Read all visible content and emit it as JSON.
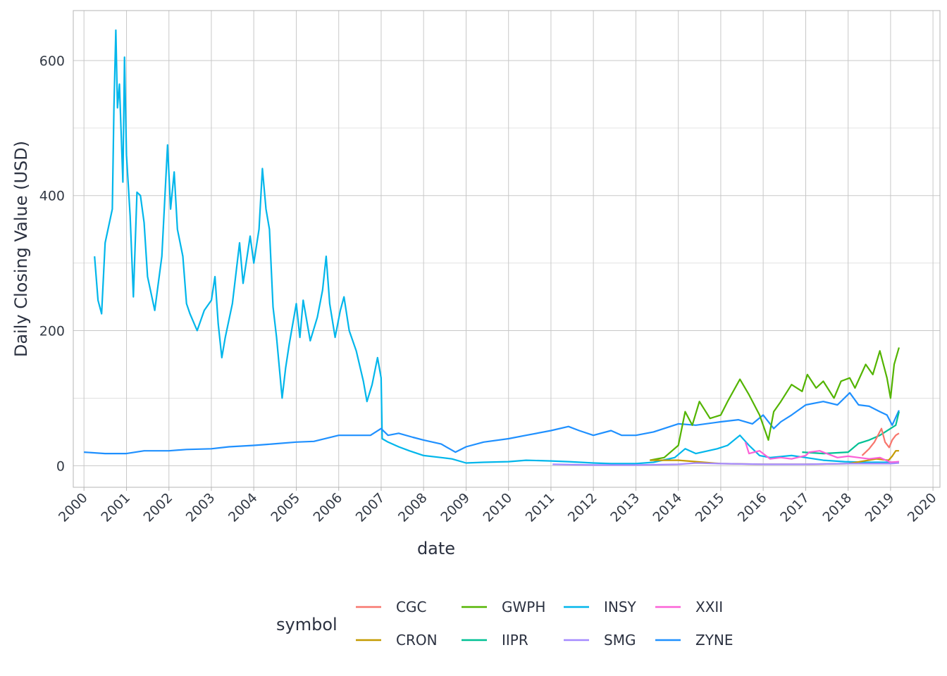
{
  "chart_data": {
    "type": "line",
    "xlabel": "date",
    "ylabel": "Daily Closing Value (USD)",
    "x_axis_type": "date",
    "xlim": [
      "1999-10-01",
      "2020-03-01"
    ],
    "ylim": [
      -32,
      674
    ],
    "x_ticks": [
      "2000",
      "2001",
      "2002",
      "2003",
      "2004",
      "2005",
      "2006",
      "2007",
      "2008",
      "2009",
      "2010",
      "2011",
      "2012",
      "2013",
      "2014",
      "2015",
      "2016",
      "2017",
      "2018",
      "2019",
      "2020"
    ],
    "y_ticks": [
      0,
      200,
      400,
      600
    ],
    "grid": true,
    "legend": {
      "title": "symbol",
      "position": "bottom"
    },
    "series": [
      {
        "name": "CGC",
        "color": "#f8766d",
        "points": [
          [
            "2018-05-01",
            15
          ],
          [
            "2018-07-01",
            25
          ],
          [
            "2018-08-15",
            35
          ],
          [
            "2018-10-15",
            55
          ],
          [
            "2018-11-15",
            35
          ],
          [
            "2018-12-20",
            27
          ],
          [
            "2019-01-15",
            38
          ],
          [
            "2019-02-15",
            45
          ],
          [
            "2019-03-15",
            48
          ]
        ]
      },
      {
        "name": "CRON",
        "color": "#c49a00",
        "points": [
          [
            "2013-05-01",
            8
          ],
          [
            "2014-01-01",
            8
          ],
          [
            "2015-01-01",
            3
          ],
          [
            "2016-01-01",
            2
          ],
          [
            "2017-01-01",
            2
          ],
          [
            "2018-01-01",
            3
          ],
          [
            "2018-09-01",
            10
          ],
          [
            "2018-12-15",
            8
          ],
          [
            "2019-01-15",
            14
          ],
          [
            "2019-02-15",
            22
          ],
          [
            "2019-03-15",
            22
          ]
        ]
      },
      {
        "name": "GWPH",
        "color": "#53b400",
        "points": [
          [
            "2013-05-01",
            8
          ],
          [
            "2013-09-01",
            12
          ],
          [
            "2014-01-01",
            30
          ],
          [
            "2014-03-01",
            80
          ],
          [
            "2014-05-01",
            60
          ],
          [
            "2014-07-01",
            95
          ],
          [
            "2014-10-01",
            70
          ],
          [
            "2015-01-01",
            75
          ],
          [
            "2015-03-01",
            95
          ],
          [
            "2015-06-15",
            128
          ],
          [
            "2015-09-01",
            105
          ],
          [
            "2015-12-01",
            75
          ],
          [
            "2016-02-15",
            38
          ],
          [
            "2016-04-01",
            80
          ],
          [
            "2016-06-01",
            95
          ],
          [
            "2016-09-01",
            120
          ],
          [
            "2016-12-01",
            110
          ],
          [
            "2017-01-15",
            135
          ],
          [
            "2017-04-01",
            115
          ],
          [
            "2017-06-01",
            125
          ],
          [
            "2017-09-01",
            100
          ],
          [
            "2017-11-01",
            125
          ],
          [
            "2018-01-15",
            130
          ],
          [
            "2018-03-01",
            115
          ],
          [
            "2018-06-01",
            150
          ],
          [
            "2018-08-01",
            135
          ],
          [
            "2018-10-01",
            170
          ],
          [
            "2018-12-01",
            130
          ],
          [
            "2019-01-01",
            100
          ],
          [
            "2019-02-01",
            150
          ],
          [
            "2019-03-15",
            175
          ]
        ]
      },
      {
        "name": "IIPR",
        "color": "#00c094",
        "points": [
          [
            "2016-12-01",
            20
          ],
          [
            "2017-06-01",
            18
          ],
          [
            "2018-01-01",
            20
          ],
          [
            "2018-04-01",
            33
          ],
          [
            "2018-07-01",
            38
          ],
          [
            "2018-10-01",
            45
          ],
          [
            "2019-01-01",
            55
          ],
          [
            "2019-02-15",
            60
          ],
          [
            "2019-03-15",
            80
          ]
        ]
      },
      {
        "name": "INSY",
        "color": "#00b6eb",
        "points": [
          [
            "2000-04-01",
            310
          ],
          [
            "2000-05-01",
            245
          ],
          [
            "2000-06-01",
            225
          ],
          [
            "2000-07-01",
            330
          ],
          [
            "2000-08-01",
            355
          ],
          [
            "2000-09-01",
            380
          ],
          [
            "2000-09-15",
            530
          ],
          [
            "2000-10-01",
            645
          ],
          [
            "2000-10-15",
            530
          ],
          [
            "2000-11-01",
            565
          ],
          [
            "2000-12-01",
            420
          ],
          [
            "2000-12-15",
            605
          ],
          [
            "2001-01-01",
            460
          ],
          [
            "2001-02-01",
            370
          ],
          [
            "2001-03-01",
            250
          ],
          [
            "2001-04-01",
            405
          ],
          [
            "2001-05-01",
            400
          ],
          [
            "2001-06-01",
            360
          ],
          [
            "2001-07-01",
            280
          ],
          [
            "2001-09-01",
            230
          ],
          [
            "2001-11-01",
            310
          ],
          [
            "2001-12-20",
            475
          ],
          [
            "2002-01-15",
            380
          ],
          [
            "2002-02-15",
            435
          ],
          [
            "2002-03-15",
            350
          ],
          [
            "2002-05-01",
            310
          ],
          [
            "2002-06-01",
            240
          ],
          [
            "2002-07-01",
            225
          ],
          [
            "2002-09-01",
            200
          ],
          [
            "2002-11-01",
            230
          ],
          [
            "2003-01-01",
            245
          ],
          [
            "2003-02-01",
            280
          ],
          [
            "2003-03-01",
            210
          ],
          [
            "2003-04-01",
            160
          ],
          [
            "2003-05-01",
            190
          ],
          [
            "2003-07-01",
            240
          ],
          [
            "2003-09-01",
            330
          ],
          [
            "2003-10-01",
            270
          ],
          [
            "2003-12-01",
            340
          ],
          [
            "2004-01-01",
            300
          ],
          [
            "2004-02-15",
            350
          ],
          [
            "2004-03-15",
            440
          ],
          [
            "2004-04-15",
            380
          ],
          [
            "2004-05-15",
            350
          ],
          [
            "2004-06-15",
            235
          ],
          [
            "2004-07-15",
            190
          ],
          [
            "2004-09-01",
            100
          ],
          [
            "2004-10-01",
            145
          ],
          [
            "2004-11-01",
            180
          ],
          [
            "2005-01-01",
            240
          ],
          [
            "2005-02-01",
            190
          ],
          [
            "2005-03-01",
            245
          ],
          [
            "2005-05-01",
            185
          ],
          [
            "2005-07-01",
            220
          ],
          [
            "2005-08-15",
            260
          ],
          [
            "2005-09-15",
            310
          ],
          [
            "2005-10-15",
            240
          ],
          [
            "2005-12-01",
            190
          ],
          [
            "2006-01-15",
            230
          ],
          [
            "2006-02-15",
            250
          ],
          [
            "2006-04-01",
            200
          ],
          [
            "2006-06-01",
            170
          ],
          [
            "2006-08-01",
            125
          ],
          [
            "2006-09-01",
            95
          ],
          [
            "2006-10-15",
            120
          ],
          [
            "2006-12-01",
            160
          ],
          [
            "2007-01-01",
            130
          ],
          [
            "2007-01-10",
            40
          ],
          [
            "2007-03-01",
            35
          ],
          [
            "2007-06-01",
            28
          ],
          [
            "2007-09-01",
            22
          ],
          [
            "2008-01-01",
            15
          ],
          [
            "2008-06-01",
            12
          ],
          [
            "2008-09-01",
            10
          ],
          [
            "2009-01-01",
            4
          ],
          [
            "2009-06-01",
            5
          ],
          [
            "2010-01-01",
            6
          ],
          [
            "2010-06-01",
            8
          ],
          [
            "2011-01-01",
            7
          ],
          [
            "2011-06-01",
            6
          ],
          [
            "2012-01-01",
            4
          ],
          [
            "2012-06-01",
            3
          ],
          [
            "2013-01-01",
            3
          ],
          [
            "2013-06-01",
            5
          ],
          [
            "2013-12-01",
            12
          ],
          [
            "2014-03-01",
            25
          ],
          [
            "2014-06-01",
            18
          ],
          [
            "2014-12-01",
            25
          ],
          [
            "2015-03-01",
            30
          ],
          [
            "2015-06-15",
            45
          ],
          [
            "2015-09-01",
            30
          ],
          [
            "2015-12-01",
            15
          ],
          [
            "2016-03-01",
            12
          ],
          [
            "2016-09-01",
            15
          ],
          [
            "2017-01-01",
            12
          ],
          [
            "2017-06-01",
            8
          ],
          [
            "2017-12-01",
            6
          ],
          [
            "2018-06-01",
            5
          ],
          [
            "2018-12-01",
            5
          ],
          [
            "2019-03-15",
            5
          ]
        ]
      },
      {
        "name": "SMG",
        "color": "#a58aff",
        "points": [
          [
            "2011-01-15",
            2
          ],
          [
            "2012-01-01",
            1
          ],
          [
            "2013-01-01",
            1
          ],
          [
            "2014-01-01",
            2
          ],
          [
            "2014-06-01",
            4
          ],
          [
            "2015-01-01",
            3
          ],
          [
            "2016-01-01",
            2
          ],
          [
            "2017-01-01",
            2
          ],
          [
            "2018-01-01",
            3
          ],
          [
            "2019-01-01",
            3
          ],
          [
            "2019-03-15",
            4
          ]
        ]
      },
      {
        "name": "XXII",
        "color": "#fb61d7",
        "points": [
          [
            "2015-08-01",
            35
          ],
          [
            "2015-09-01",
            18
          ],
          [
            "2015-12-01",
            22
          ],
          [
            "2016-03-01",
            10
          ],
          [
            "2016-06-01",
            12
          ],
          [
            "2016-09-01",
            10
          ],
          [
            "2017-01-01",
            15
          ],
          [
            "2017-02-01",
            20
          ],
          [
            "2017-05-01",
            22
          ],
          [
            "2017-07-01",
            18
          ],
          [
            "2017-10-01",
            12
          ],
          [
            "2018-01-01",
            14
          ],
          [
            "2018-04-01",
            12
          ],
          [
            "2018-07-01",
            10
          ],
          [
            "2018-10-01",
            12
          ],
          [
            "2019-01-01",
            5
          ],
          [
            "2019-03-15",
            6
          ]
        ]
      },
      {
        "name": "ZYNE",
        "color": "#1f90ff",
        "points": [
          [
            "2000-01-01",
            20
          ],
          [
            "2000-07-01",
            18
          ],
          [
            "2001-01-01",
            18
          ],
          [
            "2001-06-01",
            22
          ],
          [
            "2002-01-01",
            22
          ],
          [
            "2002-06-01",
            24
          ],
          [
            "2003-01-01",
            25
          ],
          [
            "2003-06-01",
            28
          ],
          [
            "2004-01-01",
            30
          ],
          [
            "2004-06-01",
            32
          ],
          [
            "2005-01-01",
            35
          ],
          [
            "2005-06-01",
            36
          ],
          [
            "2006-01-01",
            45
          ],
          [
            "2006-06-01",
            45
          ],
          [
            "2006-10-01",
            45
          ],
          [
            "2007-01-01",
            55
          ],
          [
            "2007-03-01",
            45
          ],
          [
            "2007-06-01",
            48
          ],
          [
            "2007-10-01",
            42
          ],
          [
            "2008-01-01",
            38
          ],
          [
            "2008-06-01",
            32
          ],
          [
            "2008-10-01",
            20
          ],
          [
            "2009-01-01",
            28
          ],
          [
            "2009-06-01",
            35
          ],
          [
            "2010-01-01",
            40
          ],
          [
            "2010-06-01",
            45
          ],
          [
            "2011-01-01",
            52
          ],
          [
            "2011-06-01",
            58
          ],
          [
            "2011-09-01",
            52
          ],
          [
            "2012-01-01",
            45
          ],
          [
            "2012-06-01",
            52
          ],
          [
            "2012-09-01",
            45
          ],
          [
            "2013-01-01",
            45
          ],
          [
            "2013-06-01",
            50
          ],
          [
            "2014-01-01",
            62
          ],
          [
            "2014-06-01",
            60
          ],
          [
            "2015-01-01",
            65
          ],
          [
            "2015-06-01",
            68
          ],
          [
            "2015-10-01",
            62
          ],
          [
            "2016-01-01",
            75
          ],
          [
            "2016-04-01",
            55
          ],
          [
            "2016-06-01",
            65
          ],
          [
            "2016-09-01",
            75
          ],
          [
            "2017-01-01",
            90
          ],
          [
            "2017-06-01",
            95
          ],
          [
            "2017-10-01",
            90
          ],
          [
            "2018-01-15",
            108
          ],
          [
            "2018-04-01",
            90
          ],
          [
            "2018-07-01",
            88
          ],
          [
            "2018-10-01",
            80
          ],
          [
            "2018-12-01",
            75
          ],
          [
            "2019-01-15",
            60
          ],
          [
            "2019-03-15",
            82
          ]
        ]
      }
    ]
  }
}
